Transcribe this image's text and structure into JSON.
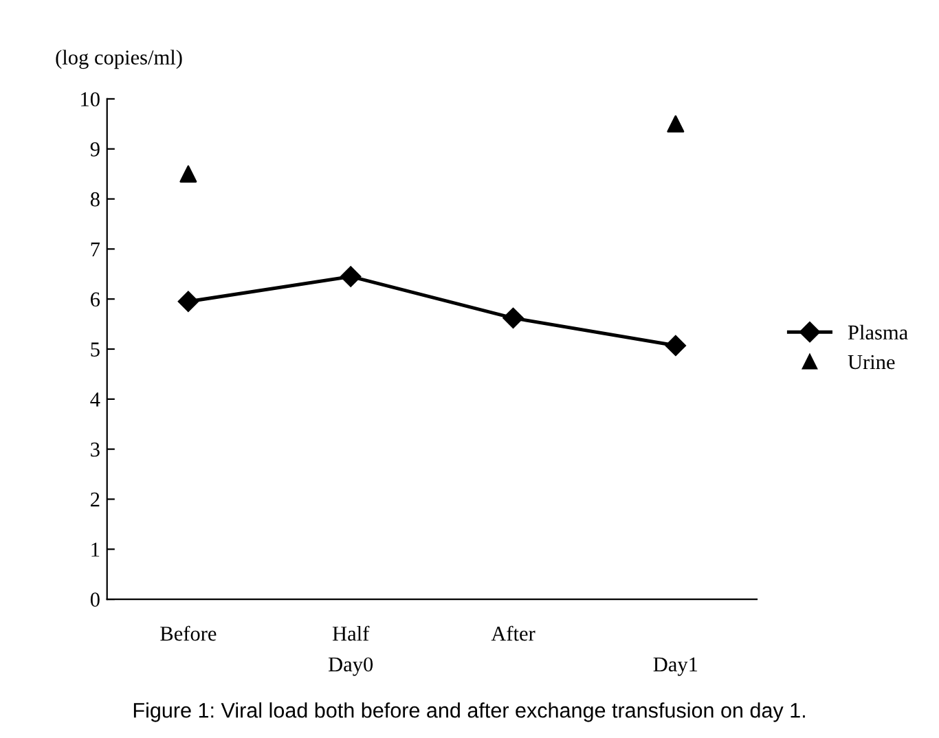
{
  "chart_data": {
    "type": "line",
    "ylabel": "(log copies/ml)",
    "categories": [
      "Before",
      "Half",
      "After",
      null
    ],
    "series": [
      {
        "name": "Plasma",
        "color": "#000000",
        "marker": "diamond",
        "values": [
          5.95,
          6.45,
          5.62,
          5.07
        ]
      },
      {
        "name": "Urine",
        "type": "scatter",
        "color": "#000000",
        "marker": "triangle",
        "values": [
          8.5,
          null,
          null,
          9.5
        ]
      }
    ],
    "ylim": [
      0,
      10
    ],
    "yticks": [
      0,
      1,
      2,
      3,
      4,
      5,
      6,
      7,
      8,
      9,
      10
    ],
    "grid": false,
    "legend": "right",
    "annotations": [
      "Day0",
      "Day1",
      "Figure 1: Viral load both before and after exchange transfusion on day 1."
    ]
  }
}
